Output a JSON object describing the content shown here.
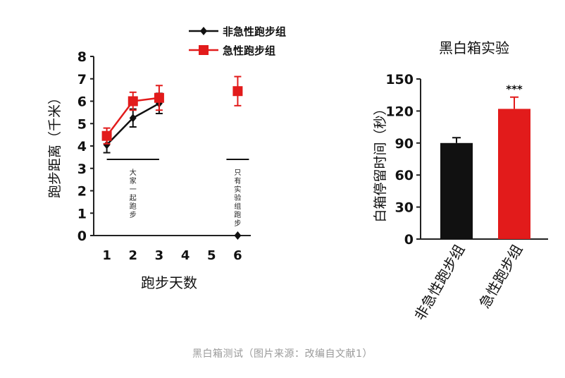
{
  "chart_data": [
    {
      "type": "line",
      "title": "",
      "xlabel": "跑步天数",
      "ylabel": "跑步距离（千米）",
      "x": [
        1,
        2,
        3,
        4,
        5,
        6
      ],
      "xticks": [
        "1",
        "2",
        "3",
        "4",
        "5",
        "6"
      ],
      "yticks": [
        "0",
        "1",
        "2",
        "3",
        "4",
        "5",
        "6",
        "7",
        "8"
      ],
      "xlim": [
        0.5,
        6.5
      ],
      "ylim": [
        0,
        8
      ],
      "legend_position": "top",
      "series": [
        {
          "name": "非急性跑步组",
          "color": "#111111",
          "marker": "diamond",
          "points": [
            {
              "x": 1,
              "y": 4.05,
              "err": 0.35
            },
            {
              "x": 2,
              "y": 5.25,
              "err": 0.4
            },
            {
              "x": 3,
              "y": 5.9,
              "err": 0.45
            },
            {
              "x": 6,
              "y": 0,
              "err": 0
            }
          ]
        },
        {
          "name": "急性跑步组",
          "color": "#e21b1b",
          "marker": "square",
          "points": [
            {
              "x": 1,
              "y": 4.45,
              "err": 0.35
            },
            {
              "x": 2,
              "y": 6.0,
              "err": 0.4
            },
            {
              "x": 3,
              "y": 6.15,
              "err": 0.55
            },
            {
              "x": 6,
              "y": 6.45,
              "err": 0.65
            }
          ]
        }
      ],
      "annotations": [
        {
          "text": "大家一起跑步",
          "x_start": 1,
          "x_end": 3,
          "y": 3.4
        },
        {
          "text": "只有实验组跑步",
          "x_start": 6,
          "x_end": 6,
          "y": 3.4
        }
      ]
    },
    {
      "type": "bar",
      "title": "黑白箱实验",
      "ylabel": "白箱停留时间（秒）",
      "xlabel": "",
      "categories": [
        "非急性跑步组",
        "急性跑步组"
      ],
      "values": [
        90,
        122
      ],
      "errors": [
        5,
        11
      ],
      "colors": [
        "#111111",
        "#e21b1b"
      ],
      "ylim": [
        0,
        150
      ],
      "yticks": [
        "0",
        "30",
        "60",
        "90",
        "120",
        "150"
      ],
      "significance": {
        "label": "***",
        "category_index": 1
      }
    }
  ],
  "caption": "黑白箱测试（图片来源：改编自文献1）"
}
